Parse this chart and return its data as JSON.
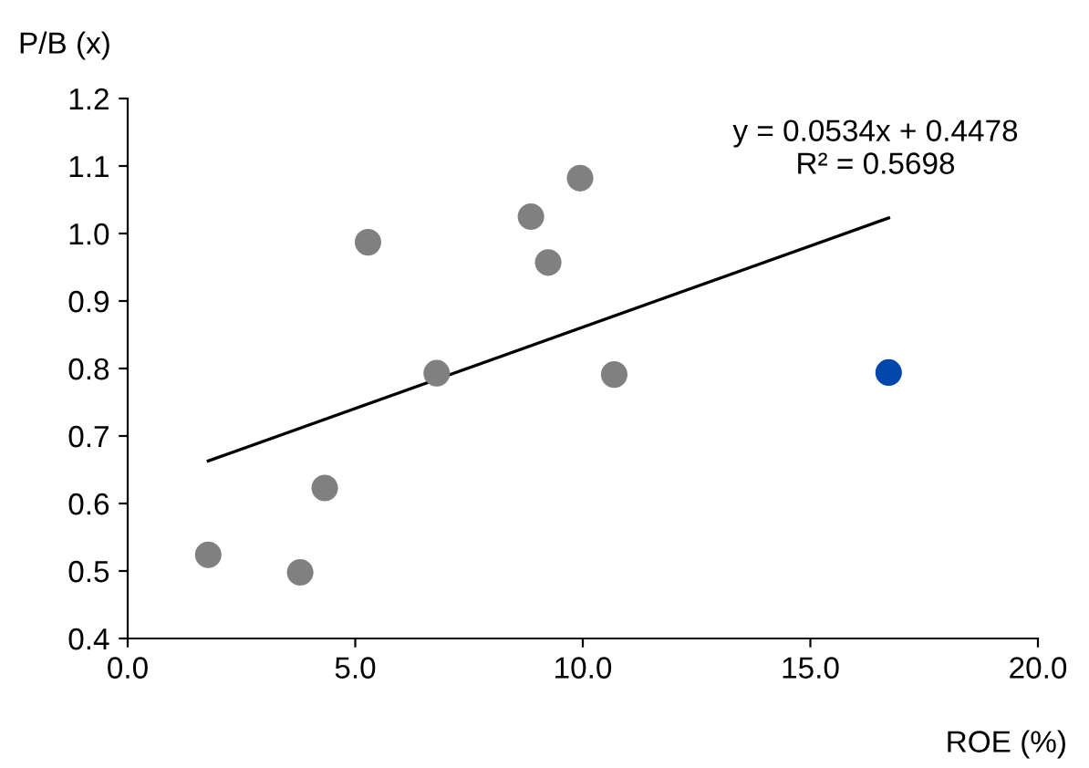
{
  "chart_data": {
    "type": "scatter",
    "xlabel": "ROE (%)",
    "ylabel": "P/B (x)",
    "series": [
      {
        "color": "#808080",
        "x": [
          1.77,
          3.79,
          4.33,
          5.28,
          6.79,
          8.86,
          9.24,
          9.94,
          10.69
        ],
        "values": [
          0.524,
          0.498,
          0.623,
          0.987,
          0.793,
          1.025,
          0.957,
          1.082,
          0.791
        ]
      },
      {
        "color": "#0047ab",
        "x": [
          16.72
        ],
        "values": [
          0.794
        ]
      },
      {
        "type": "line",
        "marker": "none",
        "color": "#000000",
        "x": [
          1.77,
          16.72
        ],
        "values": [
          0.663,
          1.023
        ]
      }
    ],
    "annotations": [
      "y = 0.0534x + 0.4478\nR² = 0.5698"
    ],
    "xlim": [
      0,
      20
    ],
    "xticks": [
      {
        "value": 0,
        "label": "0.0"
      },
      {
        "value": 5,
        "label": "5.0"
      },
      {
        "value": 10,
        "label": "10.0"
      },
      {
        "value": 15,
        "label": "15.0"
      },
      {
        "value": 20,
        "label": "20.0"
      }
    ],
    "ylim": [
      0.4,
      1.2
    ],
    "yticks": [
      0.4,
      0.5,
      0.6,
      0.7,
      0.8,
      0.9,
      {
        "value": 1.0,
        "label": "1.0"
      },
      1.1,
      1.2
    ],
    "grid": false,
    "legend": false,
    "marker": "circle"
  }
}
